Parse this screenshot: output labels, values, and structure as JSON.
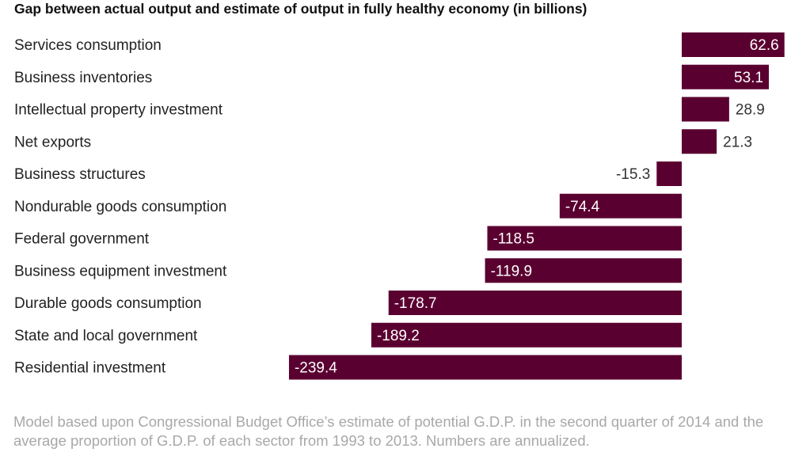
{
  "chart_data": {
    "type": "bar",
    "orientation": "horizontal",
    "title": "Gap between actual output and estimate of output in fully healthy economy (in billions)",
    "categories": [
      "Services consumption",
      "Business inventories",
      "Intellectual property investment",
      "Net exports",
      "Business structures",
      "Nondurable goods consumption",
      "Federal government",
      "Business equipment investment",
      "Durable goods consumption",
      "State and local government",
      "Residential investment"
    ],
    "values": [
      62.6,
      53.1,
      28.9,
      21.3,
      -15.3,
      -74.4,
      -118.5,
      -119.9,
      -178.7,
      -189.2,
      -239.4
    ],
    "xlim": [
      -239.4,
      62.6
    ],
    "grid": false,
    "bar_color": "#5a0030"
  },
  "note": "Model based upon Congressional Budget Office’s estimate of potential G.D.P. in the second quarter of 2014 and the average proportion of G.D.P. of each sector from 1993 to 2013. Numbers are annualized."
}
